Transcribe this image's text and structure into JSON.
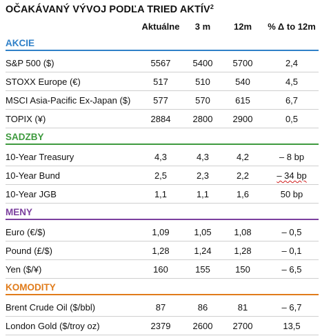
{
  "title": "OČAKÁVANÝ VÝVOJ PODĽA TRIED AKTÍV",
  "title_sup": "2",
  "colors": {
    "akcie": "#2f80c8",
    "sadzby": "#3e9a3e",
    "meny": "#7b3f9e",
    "komodity": "#e07b1a"
  },
  "columns": [
    "Aktuálne",
    "3 m",
    "12m",
    "% Δ to 12m"
  ],
  "sections": [
    {
      "name": "AKCIE",
      "rows": [
        [
          "S&P 500 ($)",
          "5567",
          "5400",
          "5700",
          "2,4"
        ],
        [
          "STOXX Europe (€)",
          "517",
          "510",
          "540",
          "4,5"
        ],
        [
          "MSCI Asia-Pacific Ex-Japan ($)",
          "577",
          "570",
          "615",
          "6,7"
        ],
        [
          "TOPIX (¥)",
          "2884",
          "2800",
          "2900",
          "0,5"
        ]
      ]
    },
    {
      "name": "SADZBY",
      "rows": [
        [
          "10-Year Treasury",
          "4,3",
          "4,3",
          "4,2",
          "– 8 bp"
        ],
        [
          "10-Year Bund",
          "2,5",
          "2,3",
          "2,2",
          "– 34 bp"
        ],
        [
          "10-Year JGB",
          "1,1",
          "1,1",
          "1,6",
          "50 bp"
        ]
      ]
    },
    {
      "name": "MENY",
      "rows": [
        [
          "Euro (€/$)",
          "1,09",
          "1,05",
          "1,08",
          "– 0,5"
        ],
        [
          "Pound (£/$)",
          "1,28",
          "1,24",
          "1,28",
          "– 0,1"
        ],
        [
          "Yen ($/¥)",
          "160",
          "155",
          "150",
          "– 6,5"
        ]
      ]
    },
    {
      "name": "KOMODITY",
      "rows": [
        [
          "Brent Crude Oil ($/bbl)",
          "87",
          "86",
          "81",
          "– 6,7"
        ],
        [
          "London Gold ($/troy oz)",
          "2379",
          "2600",
          "2700",
          "13,5"
        ]
      ]
    }
  ]
}
